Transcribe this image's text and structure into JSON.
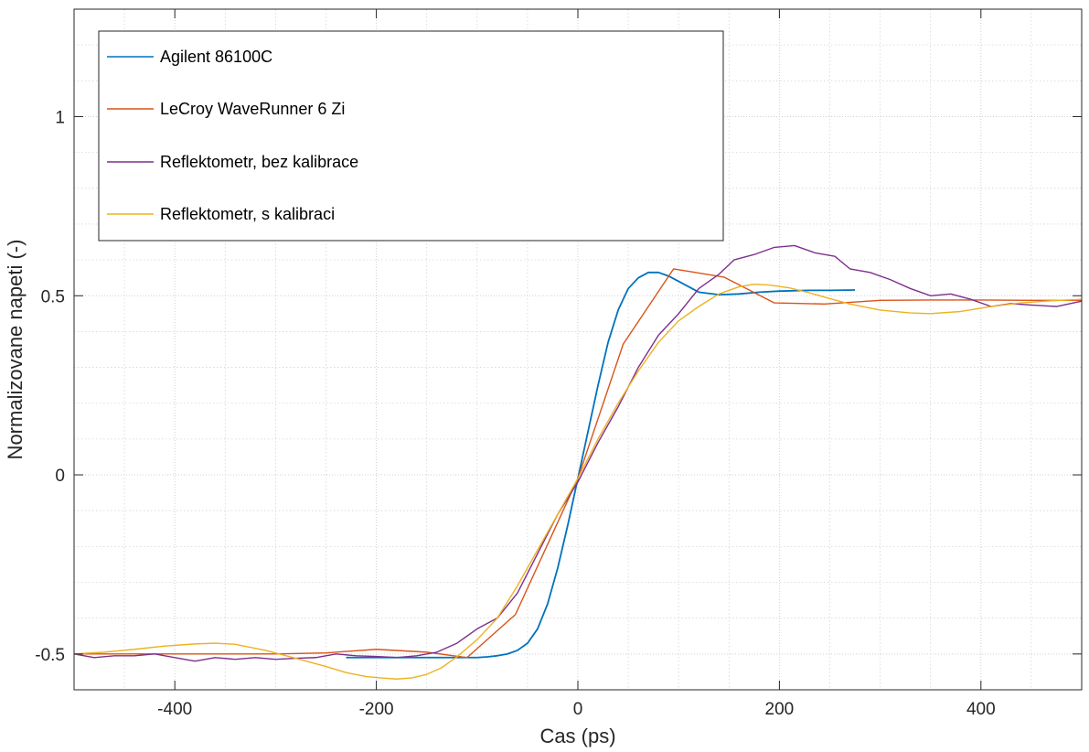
{
  "chart_data": {
    "type": "line",
    "xlabel": "Cas (ps)",
    "ylabel": "Normalizovane napeti (-)",
    "xlim": [
      -500,
      500
    ],
    "ylim": [
      -0.6,
      1.3
    ],
    "xticks": [
      -400,
      -200,
      0,
      200,
      400
    ],
    "xtick_labels": [
      "-400",
      "-200",
      "0",
      "200",
      "400"
    ],
    "yticks": [
      -0.5,
      0,
      0.5,
      1
    ],
    "ytick_labels": [
      "-0.5",
      "0",
      "0.5",
      "1"
    ],
    "grid": true,
    "minor_grid": true,
    "legend_position": "top-left",
    "series": [
      {
        "name": "Agilent 86100C",
        "color": "#0072BD",
        "x": [
          -230,
          -200,
          -180,
          -160,
          -140,
          -120,
          -100,
          -90,
          -80,
          -70,
          -60,
          -50,
          -40,
          -30,
          -20,
          -10,
          0,
          10,
          20,
          30,
          40,
          50,
          60,
          70,
          80,
          90,
          100,
          110,
          120,
          140,
          160,
          180,
          200,
          230,
          250,
          275
        ],
        "y": [
          -0.51,
          -0.51,
          -0.51,
          -0.51,
          -0.51,
          -0.51,
          -0.51,
          -0.508,
          -0.505,
          -0.5,
          -0.49,
          -0.47,
          -0.43,
          -0.36,
          -0.26,
          -0.14,
          -0.01,
          0.12,
          0.25,
          0.37,
          0.46,
          0.52,
          0.55,
          0.565,
          0.565,
          0.555,
          0.54,
          0.525,
          0.51,
          0.503,
          0.505,
          0.51,
          0.513,
          0.515,
          0.515,
          0.516
        ]
      },
      {
        "name": "LeCroy WaveRunner 6 Zi",
        "color": "#D95319",
        "x": [
          -500,
          -450,
          -400,
          -350,
          -300,
          -250,
          -200,
          -150,
          -110,
          -62,
          0,
          45,
          95,
          145,
          195,
          245,
          300,
          350,
          400,
          450,
          500
        ],
        "y": [
          -0.5,
          -0.5,
          -0.5,
          -0.5,
          -0.5,
          -0.497,
          -0.487,
          -0.495,
          -0.51,
          -0.39,
          -0.01,
          0.365,
          0.575,
          0.552,
          0.48,
          0.477,
          0.487,
          0.488,
          0.488,
          0.487,
          0.487
        ]
      },
      {
        "name": "Reflektometr, bez kalibrace",
        "color": "#7E2F8E",
        "x": [
          -500,
          -480,
          -460,
          -440,
          -420,
          -400,
          -380,
          -360,
          -340,
          -320,
          -300,
          -280,
          -260,
          -240,
          -220,
          -200,
          -180,
          -160,
          -140,
          -120,
          -100,
          -80,
          -60,
          -40,
          -20,
          0,
          20,
          40,
          60,
          80,
          100,
          120,
          140,
          155,
          175,
          195,
          215,
          235,
          255,
          270,
          290,
          310,
          330,
          350,
          370,
          390,
          410,
          430,
          450,
          475,
          500
        ],
        "y": [
          -0.5,
          -0.51,
          -0.505,
          -0.505,
          -0.5,
          -0.51,
          -0.52,
          -0.51,
          -0.515,
          -0.51,
          -0.515,
          -0.512,
          -0.51,
          -0.5,
          -0.505,
          -0.507,
          -0.51,
          -0.505,
          -0.495,
          -0.47,
          -0.43,
          -0.4,
          -0.33,
          -0.22,
          -0.11,
          -0.02,
          0.09,
          0.19,
          0.3,
          0.39,
          0.45,
          0.52,
          0.56,
          0.6,
          0.615,
          0.635,
          0.64,
          0.62,
          0.61,
          0.575,
          0.565,
          0.545,
          0.52,
          0.5,
          0.505,
          0.49,
          0.47,
          0.478,
          0.474,
          0.47,
          0.485
        ]
      },
      {
        "name": "Reflektometr, s kalibraci",
        "color": "#EDB120",
        "x": [
          -500,
          -470,
          -440,
          -410,
          -380,
          -360,
          -340,
          -310,
          -280,
          -250,
          -230,
          -210,
          -195,
          -180,
          -165,
          -150,
          -135,
          -120,
          -100,
          -80,
          -60,
          -40,
          -20,
          0,
          20,
          40,
          60,
          80,
          100,
          120,
          140,
          160,
          175,
          190,
          210,
          230,
          250,
          270,
          300,
          330,
          350,
          380,
          410,
          440,
          470,
          500
        ],
        "y": [
          -0.5,
          -0.495,
          -0.487,
          -0.478,
          -0.472,
          -0.47,
          -0.473,
          -0.49,
          -0.512,
          -0.535,
          -0.552,
          -0.563,
          -0.567,
          -0.57,
          -0.567,
          -0.557,
          -0.538,
          -0.508,
          -0.46,
          -0.4,
          -0.31,
          -0.21,
          -0.11,
          -0.01,
          0.1,
          0.2,
          0.29,
          0.37,
          0.43,
          0.47,
          0.505,
          0.525,
          0.532,
          0.53,
          0.522,
          0.508,
          0.492,
          0.477,
          0.46,
          0.452,
          0.45,
          0.456,
          0.47,
          0.48,
          0.486,
          0.49
        ]
      }
    ]
  }
}
